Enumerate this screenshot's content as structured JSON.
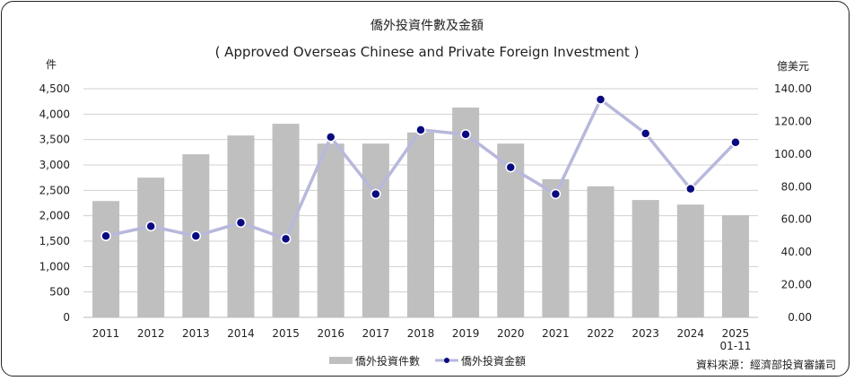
{
  "chart_data": {
    "type": "bar+line",
    "title": "僑外投資件數及金額",
    "subtitle": "( Approved Overseas Chinese and Private Foreign Investment )",
    "ylabel_left": "件",
    "ylabel_right": "億美元",
    "categories": [
      "2011",
      "2012",
      "2013",
      "2014",
      "2015",
      "2016",
      "2017",
      "2018",
      "2019",
      "2020",
      "2021",
      "2022",
      "2023",
      "2024",
      "2025\n01-11"
    ],
    "ylim_left": [
      0,
      4500
    ],
    "yticks_left": [
      "0",
      "500",
      "1,000",
      "1,500",
      "2,000",
      "2,500",
      "3,000",
      "3,500",
      "4,000",
      "4,500"
    ],
    "ylim_right": [
      0,
      140
    ],
    "yticks_right": [
      "0.00",
      "20.00",
      "40.00",
      "60.00",
      "80.00",
      "100.00",
      "120.00",
      "140.00"
    ],
    "grid": true,
    "legend_placement": "bottom",
    "series": [
      {
        "name": "僑外投資件數",
        "type": "bar",
        "axis": "left",
        "color": "#bfbfbf",
        "values": [
          2290,
          2750,
          3210,
          3580,
          3810,
          3420,
          3420,
          3640,
          4130,
          3420,
          2720,
          2580,
          2310,
          2220,
          2010
        ]
      },
      {
        "name": "僑外投資金額",
        "type": "line",
        "axis": "right",
        "color": "#b8b8dc",
        "marker_color": "#0a0a80",
        "values": [
          49.8,
          55.8,
          49.8,
          58.0,
          48.1,
          110.4,
          75.5,
          114.8,
          112.1,
          91.9,
          75.5,
          133.4,
          112.6,
          78.7,
          107.2
        ]
      }
    ],
    "source": "資料來源：經濟部投資審議司"
  }
}
